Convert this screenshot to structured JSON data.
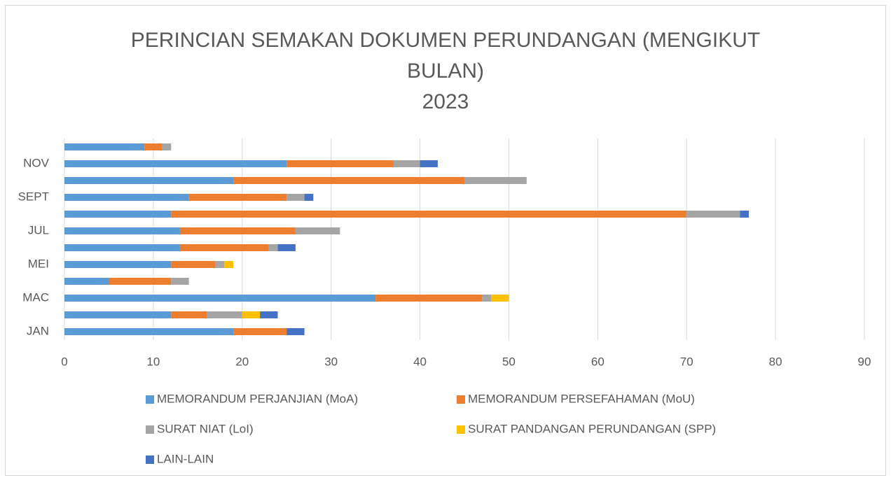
{
  "chart_data": {
    "type": "stacked_bar_horizontal",
    "title": "PERINCIAN SEMAKAN DOKUMEN PERUNDANGAN (MENGIKUT BULAN)",
    "subtitle": "2023",
    "categories": [
      "JAN",
      null,
      "MAC",
      null,
      "MEI",
      null,
      "JUL",
      null,
      "SEPT",
      null,
      "NOV",
      null
    ],
    "series": [
      {
        "name": "MEMORANDUM PERJANJIAN (MoA)",
        "color": "#5b9bd5",
        "values": [
          19,
          12,
          35,
          5,
          12,
          13,
          13,
          12,
          14,
          19,
          25,
          9
        ]
      },
      {
        "name": "MEMORANDUM PERSEFAHAMAN (MoU)",
        "color": "#ed7d31",
        "values": [
          6,
          4,
          12,
          7,
          5,
          10,
          13,
          58,
          11,
          26,
          12,
          2
        ]
      },
      {
        "name": "SURAT NIAT (LoI)",
        "color": "#a5a5a5",
        "values": [
          0,
          4,
          1,
          2,
          1,
          1,
          5,
          6,
          2,
          7,
          3,
          1
        ]
      },
      {
        "name": "SURAT PANDANGAN PERUNDANGAN (SPP)",
        "color": "#ffc000",
        "values": [
          0,
          2,
          2,
          0,
          1,
          0,
          0,
          0,
          0,
          0,
          0,
          0
        ]
      },
      {
        "name": "LAIN-LAIN",
        "color": "#4472c4",
        "values": [
          2,
          2,
          0,
          0,
          0,
          2,
          0,
          1,
          1,
          0,
          2,
          0
        ]
      }
    ],
    "xlim": [
      0,
      90
    ],
    "xticks": [
      0,
      10,
      20,
      30,
      40,
      50,
      60,
      70,
      80,
      90
    ],
    "grid": true,
    "legend": "bottom"
  }
}
